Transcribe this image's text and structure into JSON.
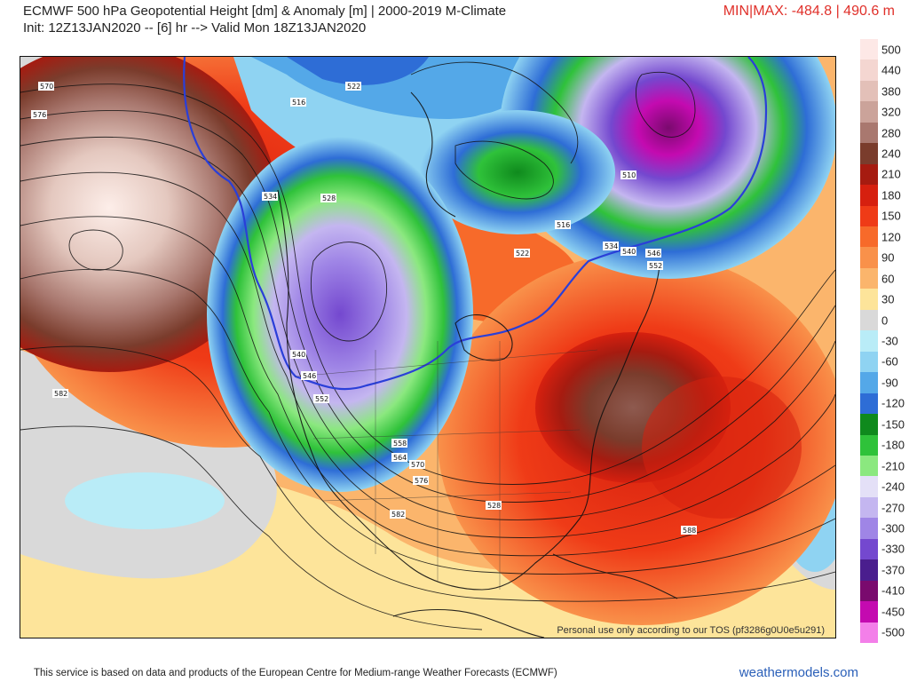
{
  "header": {
    "title": "ECMWF 500 hPa Geopotential Height [dm] & Anomaly [m] | 2000-2019 M-Climate",
    "subtitle": "Init: 12Z13JAN2020 -- [6] hr --> Valid Mon 18Z13JAN2020",
    "minmax": "MIN|MAX: -484.8 | 490.6 m"
  },
  "map": {
    "tos_notice": "Personal use only according to our TOS (pf3286g0U0e5u291)",
    "contour_labels": [
      "570",
      "576",
      "516",
      "522",
      "528",
      "534",
      "510",
      "522",
      "540",
      "546",
      "552",
      "558",
      "564",
      "570",
      "576",
      "582",
      "582",
      "588",
      "534",
      "540",
      "546",
      "552",
      "516",
      "528"
    ]
  },
  "colorbar": {
    "levels": [
      {
        "label": "500",
        "color": "#fde8e6"
      },
      {
        "label": "440",
        "color": "#f4d6d1"
      },
      {
        "label": "380",
        "color": "#e3c0b8"
      },
      {
        "label": "320",
        "color": "#cba39a"
      },
      {
        "label": "280",
        "color": "#a9786f"
      },
      {
        "label": "240",
        "color": "#7a3c2c"
      },
      {
        "label": "210",
        "color": "#a61b10"
      },
      {
        "label": "180",
        "color": "#d6200f"
      },
      {
        "label": "150",
        "color": "#ef3b17"
      },
      {
        "label": "120",
        "color": "#f76a2a"
      },
      {
        "label": "90",
        "color": "#f9914a"
      },
      {
        "label": "60",
        "color": "#fbb56c"
      },
      {
        "label": "30",
        "color": "#fde49a"
      },
      {
        "label": "0",
        "color": "#d9d9d9"
      },
      {
        "label": "-30",
        "color": "#b9ecf7"
      },
      {
        "label": "-60",
        "color": "#8fd3f2"
      },
      {
        "label": "-90",
        "color": "#54a8e8"
      },
      {
        "label": "-120",
        "color": "#2e6dd6"
      },
      {
        "label": "-150",
        "color": "#0f8a1d"
      },
      {
        "label": "-180",
        "color": "#2fc23a"
      },
      {
        "label": "-210",
        "color": "#8be87f"
      },
      {
        "label": "-240",
        "color": "#e4e0f7"
      },
      {
        "label": "-270",
        "color": "#c4b6f0"
      },
      {
        "label": "-300",
        "color": "#9f85e6"
      },
      {
        "label": "-330",
        "color": "#7448cf"
      },
      {
        "label": "-370",
        "color": "#4a1e8e"
      },
      {
        "label": "-410",
        "color": "#7a0a6e"
      },
      {
        "label": "-450",
        "color": "#c40ab0"
      },
      {
        "label": "-500",
        "color": "#f37fe9"
      }
    ]
  },
  "footer": {
    "attribution": "This service is based on data and products of the European Centre for Medium-range Weather Forecasts (ECMWF)",
    "site": "weathermodels.com"
  }
}
